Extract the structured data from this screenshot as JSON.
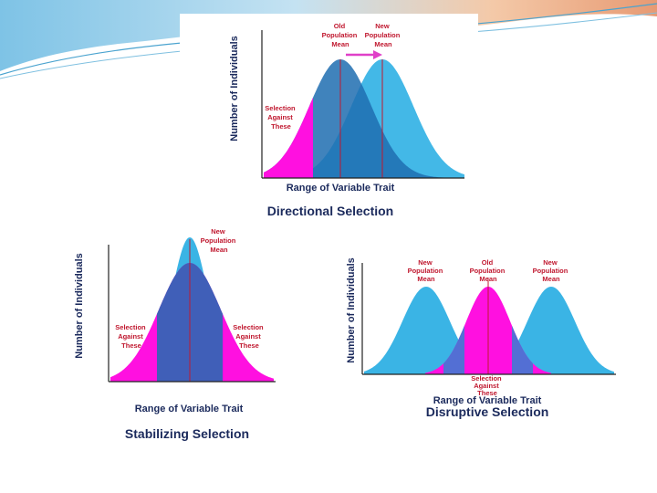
{
  "colors": {
    "magenta": "#ff10e0",
    "dark_blue": "#1e6db0",
    "light_blue": "#2fb0e4",
    "mid_blue": "#1a8fd0",
    "label_red": "#c0182f",
    "axis_text": "#1b2a5c",
    "arrow": "#e040c8"
  },
  "directional": {
    "title": "Directional Selection",
    "x_label": "Range of Variable Trait",
    "y_label": "Number of Individuals",
    "old_mean": [
      "Old",
      "Population",
      "Mean"
    ],
    "new_mean": [
      "New",
      "Population",
      "Mean"
    ],
    "against": [
      "Selection",
      "Against",
      "These"
    ]
  },
  "stabilizing": {
    "title": "Stabilizing Selection",
    "x_label": "Range of Variable Trait",
    "y_label": "Number of Individuals",
    "new_mean": [
      "New",
      "Population",
      "Mean"
    ],
    "against_left": [
      "Selection",
      "Against",
      "These"
    ],
    "against_right": [
      "Selection",
      "Against",
      "These"
    ]
  },
  "disruptive": {
    "title": "Disruptive Selection",
    "x_label": "Range of Variable Trait",
    "y_label": "Number of Individuals",
    "new_mean_left": [
      "New",
      "Population",
      "Mean"
    ],
    "old_mean": [
      "Old",
      "Population",
      "Mean"
    ],
    "new_mean_right": [
      "New",
      "Population",
      "Mean"
    ],
    "against": [
      "Selection",
      "Against",
      "These"
    ]
  }
}
